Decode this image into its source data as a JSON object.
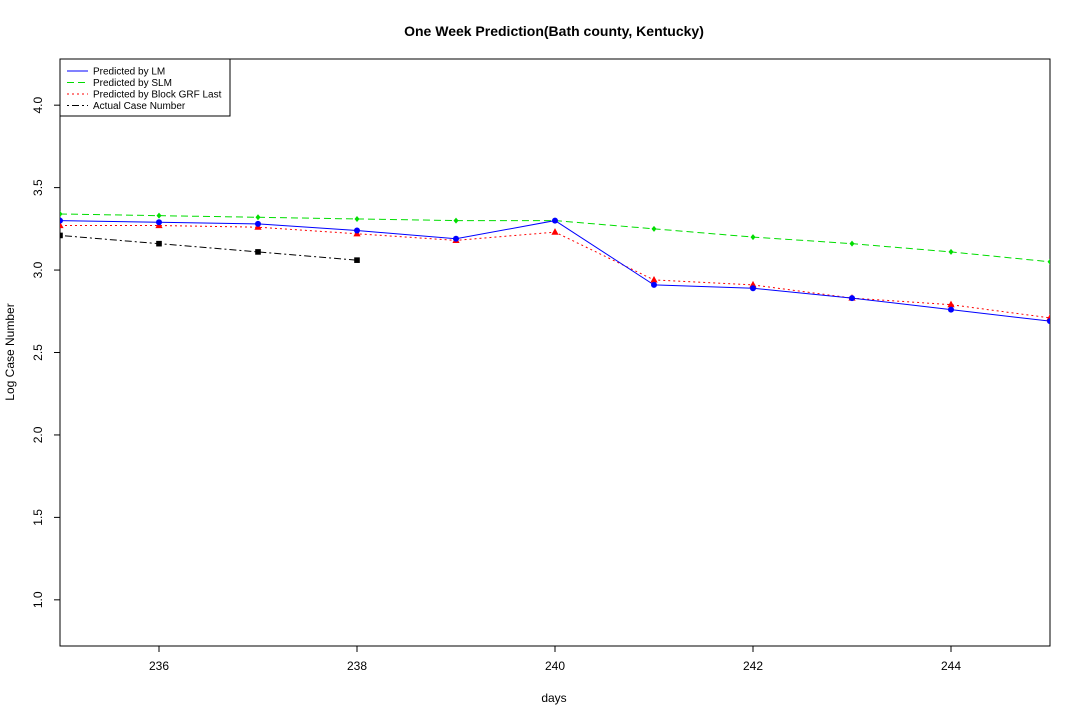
{
  "chart_data": {
    "type": "line",
    "title": "One Week Prediction(Bath county, Kentucky)",
    "xlabel": "days",
    "ylabel": "Log Case Number",
    "xlim": [
      235,
      245
    ],
    "ylim": [
      0.72,
      4.28
    ],
    "xticks": [
      236,
      238,
      240,
      242,
      244
    ],
    "yticks": [
      1.0,
      1.5,
      2.0,
      2.5,
      3.0,
      3.5,
      4.0
    ],
    "xtick_labels": [
      "236",
      "238",
      "240",
      "242",
      "244"
    ],
    "ytick_labels": [
      "1.0",
      "1.5",
      "2.0",
      "2.5",
      "3.0",
      "3.5",
      "4.0"
    ],
    "grid": false,
    "legend_position": "top-left",
    "x": [
      235,
      236,
      237,
      238,
      239,
      240,
      241,
      242,
      243,
      244,
      245
    ],
    "series": [
      {
        "name": "Predicted by LM",
        "color": "#0000ff",
        "line_style": "solid",
        "marker": "circle",
        "x": [
          235,
          236,
          237,
          238,
          239,
          240,
          241,
          242,
          243,
          244,
          245
        ],
        "values": [
          3.3,
          3.29,
          3.28,
          3.24,
          3.19,
          3.3,
          2.91,
          2.89,
          2.83,
          2.76,
          2.69
        ]
      },
      {
        "name": "Predicted by SLM",
        "color": "#00dd00",
        "line_style": "dashed",
        "marker": "diamond",
        "x": [
          235,
          236,
          237,
          238,
          239,
          240,
          241,
          242,
          243,
          244,
          245
        ],
        "values": [
          3.34,
          3.33,
          3.32,
          3.31,
          3.3,
          3.3,
          3.25,
          3.2,
          3.16,
          3.11,
          3.05
        ]
      },
      {
        "name": "Predicted by Block GRF Last",
        "color": "#ff0000",
        "line_style": "dotted",
        "marker": "triangle",
        "x": [
          235,
          236,
          237,
          238,
          239,
          240,
          241,
          242,
          243,
          244,
          245
        ],
        "values": [
          3.27,
          3.27,
          3.26,
          3.22,
          3.18,
          3.23,
          2.94,
          2.91,
          2.83,
          2.79,
          2.71
        ]
      },
      {
        "name": "Actual Case Number",
        "color": "#000000",
        "line_style": "dotdash",
        "marker": "square",
        "x": [
          235,
          236,
          237,
          238
        ],
        "values": [
          3.21,
          3.16,
          3.11,
          3.06
        ]
      }
    ]
  }
}
